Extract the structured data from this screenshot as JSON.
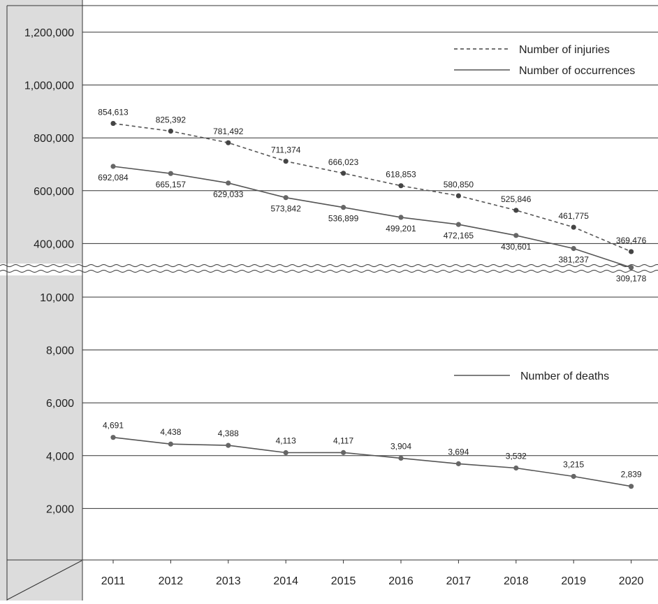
{
  "chart_data": {
    "type": "line",
    "title": "",
    "xlabel": "",
    "ylabel": "",
    "grid": true,
    "categories": [
      "2011",
      "2012",
      "2013",
      "2014",
      "2015",
      "2016",
      "2017",
      "2018",
      "2019",
      "2020"
    ],
    "upper_panel": {
      "ylim": [
        200000,
        1200000
      ],
      "yticks": [
        "1,200,000",
        "1,000,000",
        "800,000",
        "600,000",
        "400,000"
      ],
      "legend_position": "top-right",
      "series": [
        {
          "name": "Number of injuries",
          "style": "dashed",
          "values": [
            854613,
            825392,
            781492,
            711374,
            666023,
            618853,
            580850,
            525846,
            461775,
            369476
          ],
          "labels": [
            "854,613",
            "825,392",
            "781,492",
            "711,374",
            "666,023",
            "618,853",
            "580,850",
            "525,846",
            "461,775",
            "369,476"
          ]
        },
        {
          "name": "Number of occurrences",
          "style": "solid",
          "values": [
            692084,
            665157,
            629033,
            573842,
            536899,
            499201,
            472165,
            430601,
            381237,
            309178
          ],
          "labels": [
            "692,084",
            "665,157",
            "629,033",
            "573,842",
            "536,899",
            "499,201",
            "472,165",
            "430,601",
            "381,237",
            "309,178"
          ]
        }
      ]
    },
    "lower_panel": {
      "ylim": [
        0,
        10000
      ],
      "yticks": [
        "10,000",
        "8,000",
        "6,000",
        "4,000",
        "2,000"
      ],
      "legend_position": "middle-right",
      "series": [
        {
          "name": "Number of deaths",
          "style": "solid",
          "values": [
            4691,
            4438,
            4388,
            4113,
            4117,
            3904,
            3694,
            3532,
            3215,
            2839
          ],
          "labels": [
            "4,691",
            "4,438",
            "4,388",
            "4,113",
            "4,117",
            "3,904",
            "3,694",
            "3,532",
            "3,215",
            "2,839"
          ]
        }
      ]
    },
    "colors": {
      "line": "#555555",
      "marker": "#666666",
      "marker_injuries": "#444444",
      "axis_panel": "#dcdcdc",
      "grid": "#333333"
    }
  }
}
